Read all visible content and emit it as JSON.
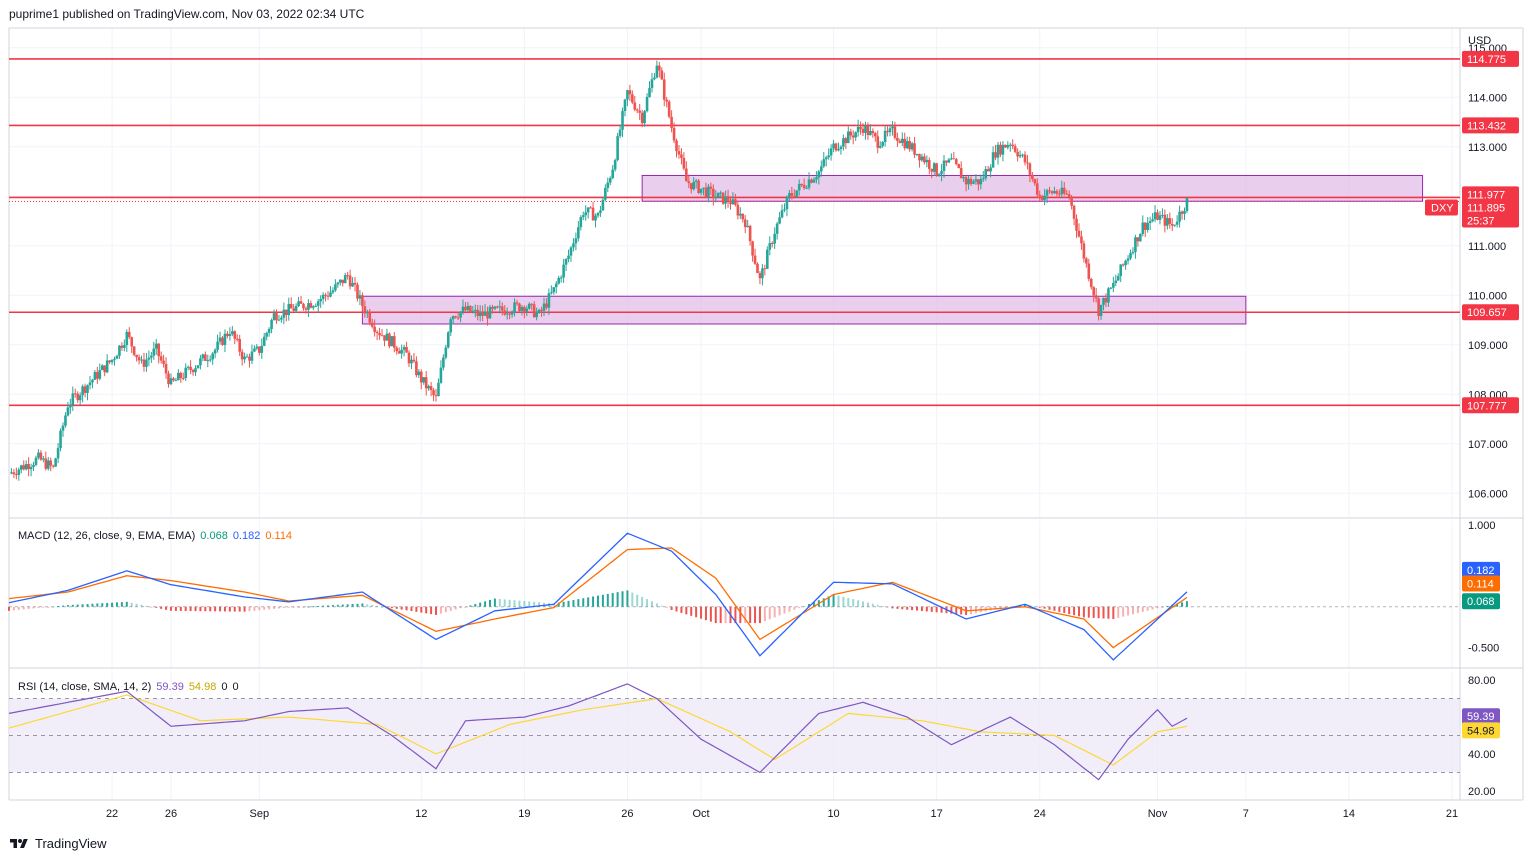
{
  "header": {
    "text": "puprime1 published on TradingView.com, Nov 03, 2022 02:34 UTC"
  },
  "footer": {
    "brand": "TradingView"
  },
  "chart_data": {
    "type": "candlestick",
    "symbol": "DXY",
    "currency": "USD",
    "countdown": "25:37",
    "last_price": 111.895,
    "price_axis": {
      "min": 105.5,
      "max": 115.4,
      "ticks": [
        106.0,
        107.0,
        108.0,
        109.0,
        110.0,
        111.0,
        112.0,
        113.0,
        114.0,
        115.0
      ]
    },
    "price_tick_labels": [
      "106.000",
      "107.000",
      "108.000",
      "109.000",
      "110.000",
      "111.000",
      "112.000",
      "113.000",
      "114.000",
      "115.000"
    ],
    "x_axis": {
      "start_date": "2022-08-15",
      "end_date": "2022-11-21",
      "ticks": [
        {
          "date": "2022-08-22",
          "label": "22"
        },
        {
          "date": "2022-08-26",
          "label": "26"
        },
        {
          "date": "2022-09-01",
          "label": "Sep"
        },
        {
          "date": "2022-09-12",
          "label": "12"
        },
        {
          "date": "2022-09-19",
          "label": "19"
        },
        {
          "date": "2022-09-26",
          "label": "26"
        },
        {
          "date": "2022-10-01",
          "label": "Oct"
        },
        {
          "date": "2022-10-10",
          "label": "10"
        },
        {
          "date": "2022-10-17",
          "label": "17"
        },
        {
          "date": "2022-10-24",
          "label": "24"
        },
        {
          "date": "2022-11-01",
          "label": "Nov"
        },
        {
          "date": "2022-11-07",
          "label": "7"
        },
        {
          "date": "2022-11-14",
          "label": "14"
        },
        {
          "date": "2022-11-21",
          "label": "21"
        }
      ]
    },
    "horizontal_levels": [
      {
        "price": 114.775,
        "label": "114.775"
      },
      {
        "price": 113.432,
        "label": "113.432"
      },
      {
        "price": 111.977,
        "label": "111.977"
      },
      {
        "price": 109.657,
        "label": "109.657"
      },
      {
        "price": 107.777,
        "label": "107.777"
      }
    ],
    "zones": [
      {
        "from": "2022-09-27",
        "to": "2022-11-19",
        "low": 111.9,
        "high": 112.42
      },
      {
        "from": "2022-09-08",
        "to": "2022-11-07",
        "low": 109.42,
        "high": 109.98
      }
    ],
    "price_path": [
      [
        "2022-08-15",
        106.4
      ],
      [
        "2022-08-17",
        106.7
      ],
      [
        "2022-08-18",
        106.5
      ],
      [
        "2022-08-19",
        107.8
      ],
      [
        "2022-08-22",
        108.7
      ],
      [
        "2022-08-23",
        109.2
      ],
      [
        "2022-08-24",
        108.6
      ],
      [
        "2022-08-25",
        108.9
      ],
      [
        "2022-08-26",
        108.2
      ],
      [
        "2022-08-29",
        108.9
      ],
      [
        "2022-08-30",
        109.3
      ],
      [
        "2022-08-31",
        108.7
      ],
      [
        "2022-09-01",
        108.9
      ],
      [
        "2022-09-02",
        109.6
      ],
      [
        "2022-09-05",
        109.9
      ],
      [
        "2022-09-06",
        110.1
      ],
      [
        "2022-09-07",
        110.4
      ],
      [
        "2022-09-08",
        109.8
      ],
      [
        "2022-09-09",
        109.3
      ],
      [
        "2022-09-11",
        108.8
      ],
      [
        "2022-09-12",
        108.3
      ],
      [
        "2022-09-13",
        107.9
      ],
      [
        "2022-09-14",
        109.6
      ],
      [
        "2022-09-15",
        109.7
      ],
      [
        "2022-09-16",
        109.6
      ],
      [
        "2022-09-19",
        109.8
      ],
      [
        "2022-09-20",
        109.6
      ],
      [
        "2022-09-21",
        110.1
      ],
      [
        "2022-09-22",
        110.8
      ],
      [
        "2022-09-23",
        111.7
      ],
      [
        "2022-09-24",
        111.6
      ],
      [
        "2022-09-25",
        112.6
      ],
      [
        "2022-09-26",
        114.1
      ],
      [
        "2022-09-27",
        113.6
      ],
      [
        "2022-09-28",
        114.7
      ],
      [
        "2022-09-29",
        113.4
      ],
      [
        "2022-09-30",
        112.3
      ],
      [
        "2022-10-02",
        112.0
      ],
      [
        "2022-10-03",
        111.9
      ],
      [
        "2022-10-04",
        111.5
      ],
      [
        "2022-10-05",
        110.3
      ],
      [
        "2022-10-06",
        111.3
      ],
      [
        "2022-10-07",
        112.0
      ],
      [
        "2022-10-09",
        112.5
      ],
      [
        "2022-10-10",
        113.0
      ],
      [
        "2022-10-11",
        113.2
      ],
      [
        "2022-10-12",
        113.4
      ],
      [
        "2022-10-13",
        113.1
      ],
      [
        "2022-10-14",
        113.3
      ],
      [
        "2022-10-16",
        112.8
      ],
      [
        "2022-10-17",
        112.5
      ],
      [
        "2022-10-18",
        112.7
      ],
      [
        "2022-10-19",
        112.3
      ],
      [
        "2022-10-20",
        112.3
      ],
      [
        "2022-10-21",
        112.9
      ],
      [
        "2022-10-22",
        113.1
      ],
      [
        "2022-10-23",
        112.7
      ],
      [
        "2022-10-24",
        112.0
      ],
      [
        "2022-10-25",
        112.1
      ],
      [
        "2022-10-26",
        112.0
      ],
      [
        "2022-10-27",
        110.8
      ],
      [
        "2022-10-28",
        109.7
      ],
      [
        "2022-10-29",
        110.2
      ],
      [
        "2022-10-30",
        110.8
      ],
      [
        "2022-10-31",
        111.4
      ],
      [
        "2022-11-01",
        111.6
      ],
      [
        "2022-11-02",
        111.4
      ],
      [
        "2022-11-03",
        111.9
      ]
    ],
    "macd": {
      "label": "MACD (12, 26, close, 9, EMA, EMA)",
      "values": [
        "0.068",
        "0.182",
        "0.114"
      ],
      "ticks": [
        1.0,
        -0.5
      ],
      "tick_labels": [
        "1.000",
        "-0.500"
      ],
      "range": [
        -0.75,
        1.05
      ],
      "macd_path": [
        [
          "2022-08-15",
          0.05
        ],
        [
          "2022-08-19",
          0.2
        ],
        [
          "2022-08-23",
          0.44
        ],
        [
          "2022-08-26",
          0.27
        ],
        [
          "2022-08-31",
          0.12
        ],
        [
          "2022-09-03",
          0.06
        ],
        [
          "2022-09-08",
          0.18
        ],
        [
          "2022-09-13",
          -0.4
        ],
        [
          "2022-09-17",
          -0.05
        ],
        [
          "2022-09-21",
          0.03
        ],
        [
          "2022-09-26",
          0.9
        ],
        [
          "2022-09-29",
          0.68
        ],
        [
          "2022-10-02",
          0.15
        ],
        [
          "2022-10-05",
          -0.6
        ],
        [
          "2022-10-10",
          0.3
        ],
        [
          "2022-10-14",
          0.28
        ],
        [
          "2022-10-19",
          -0.15
        ],
        [
          "2022-10-23",
          0.03
        ],
        [
          "2022-10-27",
          -0.28
        ],
        [
          "2022-10-29",
          -0.65
        ],
        [
          "2022-11-03",
          0.182
        ]
      ],
      "signal_path": [
        [
          "2022-08-15",
          0.1
        ],
        [
          "2022-08-19",
          0.18
        ],
        [
          "2022-08-23",
          0.38
        ],
        [
          "2022-08-26",
          0.32
        ],
        [
          "2022-08-31",
          0.18
        ],
        [
          "2022-09-03",
          0.07
        ],
        [
          "2022-09-08",
          0.14
        ],
        [
          "2022-09-13",
          -0.3
        ],
        [
          "2022-09-17",
          -0.15
        ],
        [
          "2022-09-21",
          -0.01
        ],
        [
          "2022-09-26",
          0.7
        ],
        [
          "2022-09-29",
          0.72
        ],
        [
          "2022-10-02",
          0.35
        ],
        [
          "2022-10-05",
          -0.4
        ],
        [
          "2022-10-10",
          0.15
        ],
        [
          "2022-10-14",
          0.3
        ],
        [
          "2022-10-19",
          -0.05
        ],
        [
          "2022-10-23",
          0.0
        ],
        [
          "2022-10-27",
          -0.15
        ],
        [
          "2022-10-29",
          -0.5
        ],
        [
          "2022-11-03",
          0.114
        ]
      ]
    },
    "rsi": {
      "label": "RSI (14, close, SMA, 14, 2)",
      "values": [
        "59.39",
        "54.98",
        "0",
        "0"
      ],
      "ticks": [
        80,
        60,
        40,
        20
      ],
      "tick_labels": [
        "80.00",
        "60.00",
        "40.00",
        "20.00"
      ],
      "range": [
        15,
        85
      ],
      "band": [
        30,
        70
      ],
      "rsi_path": [
        [
          "2022-08-15",
          62
        ],
        [
          "2022-08-19",
          68
        ],
        [
          "2022-08-23",
          74
        ],
        [
          "2022-08-26",
          55
        ],
        [
          "2022-08-31",
          58
        ],
        [
          "2022-09-03",
          63
        ],
        [
          "2022-09-07",
          65
        ],
        [
          "2022-09-10",
          50
        ],
        [
          "2022-09-13",
          32
        ],
        [
          "2022-09-15",
          58
        ],
        [
          "2022-09-19",
          60
        ],
        [
          "2022-09-22",
          66
        ],
        [
          "2022-09-26",
          78
        ],
        [
          "2022-09-28",
          70
        ],
        [
          "2022-10-01",
          48
        ],
        [
          "2022-10-05",
          30
        ],
        [
          "2022-10-09",
          62
        ],
        [
          "2022-10-12",
          68
        ],
        [
          "2022-10-15",
          60
        ],
        [
          "2022-10-18",
          45
        ],
        [
          "2022-10-22",
          60
        ],
        [
          "2022-10-25",
          45
        ],
        [
          "2022-10-28",
          26
        ],
        [
          "2022-10-30",
          48
        ],
        [
          "2022-11-01",
          64
        ],
        [
          "2022-11-02",
          55
        ],
        [
          "2022-11-03",
          59.39
        ]
      ],
      "sma_path": [
        [
          "2022-08-15",
          54
        ],
        [
          "2022-08-23",
          72
        ],
        [
          "2022-08-28",
          58
        ],
        [
          "2022-09-03",
          60
        ],
        [
          "2022-09-09",
          56
        ],
        [
          "2022-09-13",
          40
        ],
        [
          "2022-09-18",
          56
        ],
        [
          "2022-09-23",
          64
        ],
        [
          "2022-09-28",
          70
        ],
        [
          "2022-10-03",
          52
        ],
        [
          "2022-10-06",
          37
        ],
        [
          "2022-10-11",
          62
        ],
        [
          "2022-10-16",
          58
        ],
        [
          "2022-10-20",
          52
        ],
        [
          "2022-10-25",
          50
        ],
        [
          "2022-10-29",
          34
        ],
        [
          "2022-11-01",
          52
        ],
        [
          "2022-11-03",
          54.98
        ]
      ]
    }
  },
  "colors": {
    "up": "#26a69a",
    "down": "#ef5350",
    "level": "#f23645",
    "zone_fill": "#e1bee7",
    "zone_border": "#9c27b0",
    "macd": "#2962ff",
    "signal": "#ff6d00",
    "hist_up": "#26a69a",
    "hist_down": "#ef5350",
    "rsi": "#7e57c2",
    "rsi_sma": "#fdd835",
    "rsi_band": "#ede7f6",
    "macd_value_color": "#089981",
    "price_tag": "#f23645",
    "symbol_tag": "#f23645"
  }
}
